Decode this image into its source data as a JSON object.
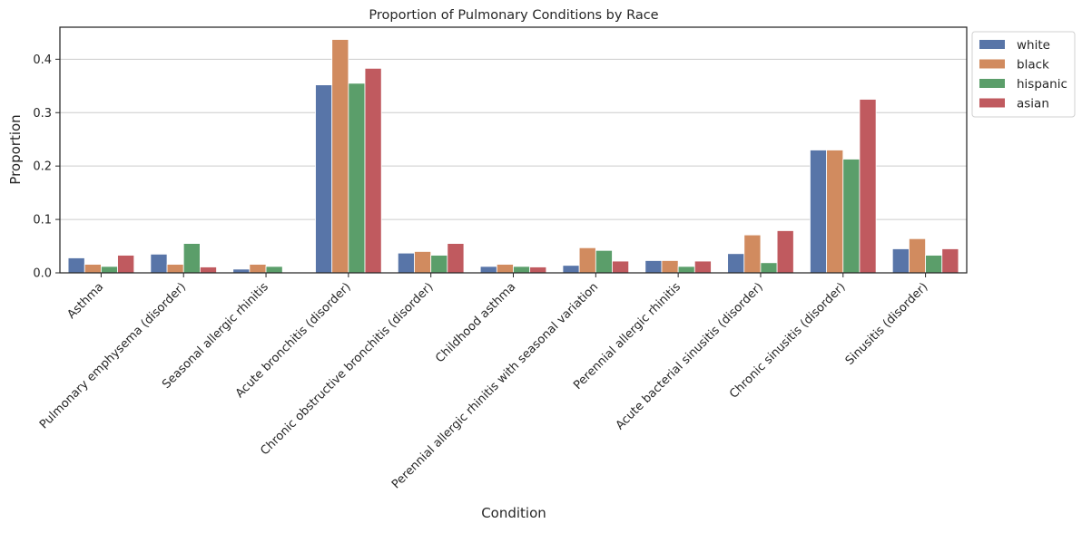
{
  "chart_data": {
    "type": "bar",
    "title": "Proportion of Pulmonary Conditions by Race",
    "xlabel": "Condition",
    "ylabel": "Proportion",
    "ylim": [
      0,
      0.46
    ],
    "yticks": [
      0.0,
      0.1,
      0.2,
      0.3,
      0.4
    ],
    "ytick_labels": [
      "0.0",
      "0.1",
      "0.2",
      "0.3",
      "0.4"
    ],
    "grid": "horizontal",
    "legend_position": "outside-top-right",
    "categories": [
      "Asthma",
      "Pulmonary emphysema (disorder)",
      "Seasonal allergic rhinitis",
      "Acute bronchitis (disorder)",
      "Chronic obstructive bronchitis (disorder)",
      "Childhood asthma",
      "Perennial allergic rhinitis with seasonal variation",
      "Perennial allergic rhinitis",
      "Acute bacterial sinusitis (disorder)",
      "Chronic sinusitis (disorder)",
      "Sinusitis (disorder)"
    ],
    "series": [
      {
        "name": "white",
        "color": "#5875a8",
        "values": [
          0.028,
          0.035,
          0.007,
          0.352,
          0.037,
          0.012,
          0.014,
          0.023,
          0.036,
          0.23,
          0.045
        ]
      },
      {
        "name": "black",
        "color": "#d18b5f",
        "values": [
          0.016,
          0.016,
          0.016,
          0.437,
          0.04,
          0.016,
          0.047,
          0.023,
          0.071,
          0.23,
          0.064
        ]
      },
      {
        "name": "hispanic",
        "color": "#5b9e6a",
        "values": [
          0.012,
          0.055,
          0.012,
          0.355,
          0.033,
          0.012,
          0.042,
          0.012,
          0.019,
          0.213,
          0.033
        ]
      },
      {
        "name": "asian",
        "color": "#c05a5f",
        "values": [
          0.033,
          0.011,
          0.0,
          0.383,
          0.055,
          0.011,
          0.022,
          0.022,
          0.079,
          0.325,
          0.045
        ]
      }
    ]
  }
}
